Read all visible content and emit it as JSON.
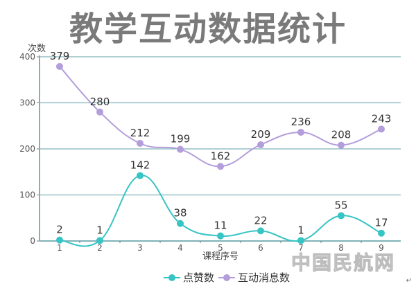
{
  "header": {
    "title": "教学互动数据统计"
  },
  "watermark": "中国民航网",
  "return_mark": "↵",
  "colors": {
    "likes": "#36c4c4",
    "messages": "#b39ddb",
    "grid": "#7fb2b8",
    "axis": "#7fb2b8",
    "title": "#7a7a7a"
  },
  "legend": {
    "items": [
      {
        "label": "点赞数",
        "color": "#36c4c4"
      },
      {
        "label": "互动消息数",
        "color": "#b39ddb"
      }
    ]
  },
  "chart_data": {
    "type": "line",
    "title": "教学互动数据统计",
    "xlabel": "课程序号",
    "ylabel": "次数",
    "categories": [
      "1",
      "2",
      "3",
      "4",
      "5",
      "6",
      "7",
      "8",
      "9"
    ],
    "yticks": [
      0,
      100,
      200,
      300,
      400
    ],
    "ylim": [
      0,
      400
    ],
    "grid": true,
    "smooth": true,
    "legend_position": "bottom",
    "series": [
      {
        "name": "点赞数",
        "color": "#36c4c4",
        "values": [
          2,
          1,
          142,
          38,
          11,
          22,
          1,
          55,
          17
        ]
      },
      {
        "name": "互动消息数",
        "color": "#b39ddb",
        "values": [
          379,
          280,
          212,
          199,
          162,
          209,
          236,
          208,
          243
        ]
      }
    ]
  }
}
